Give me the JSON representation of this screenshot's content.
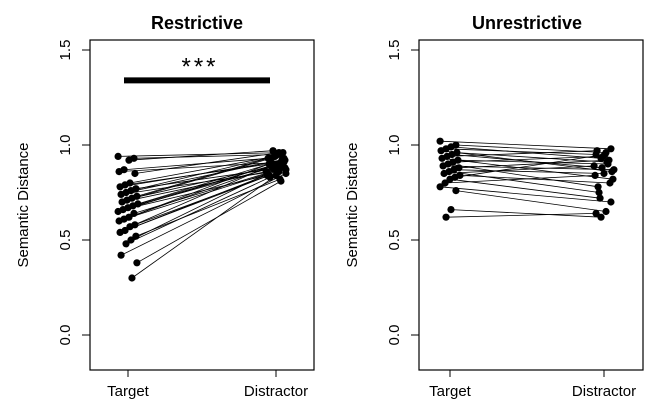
{
  "chart_data": [
    {
      "type": "scatter",
      "title": "Restrictive",
      "xlabel": "",
      "ylabel": "Semantic Distance",
      "categories": [
        "Target",
        "Distractor"
      ],
      "ylim": [
        0.0,
        1.5
      ],
      "yticks": [
        "0.0",
        "0.5",
        "1.0",
        "1.5"
      ],
      "grid": false,
      "annotations": [
        {
          "text": "***",
          "from": "Target",
          "to": "Distractor",
          "y": 1.34
        }
      ],
      "pairs": [
        {
          "target": 0.94,
          "distractor": 0.96
        },
        {
          "target": 0.93,
          "distractor": 0.95
        },
        {
          "target": 0.92,
          "distractor": 0.97
        },
        {
          "target": 0.87,
          "distractor": 0.93
        },
        {
          "target": 0.86,
          "distractor": 0.91
        },
        {
          "target": 0.85,
          "distractor": 0.96
        },
        {
          "target": 0.8,
          "distractor": 0.94
        },
        {
          "target": 0.79,
          "distractor": 0.9
        },
        {
          "target": 0.78,
          "distractor": 0.92
        },
        {
          "target": 0.77,
          "distractor": 0.88
        },
        {
          "target": 0.76,
          "distractor": 0.94
        },
        {
          "target": 0.75,
          "distractor": 0.91
        },
        {
          "target": 0.74,
          "distractor": 0.87
        },
        {
          "target": 0.73,
          "distractor": 0.95
        },
        {
          "target": 0.72,
          "distractor": 0.89
        },
        {
          "target": 0.71,
          "distractor": 0.93
        },
        {
          "target": 0.7,
          "distractor": 0.86
        },
        {
          "target": 0.69,
          "distractor": 0.92
        },
        {
          "target": 0.68,
          "distractor": 0.9
        },
        {
          "target": 0.67,
          "distractor": 0.88
        },
        {
          "target": 0.66,
          "distractor": 0.84
        },
        {
          "target": 0.65,
          "distractor": 0.91
        },
        {
          "target": 0.64,
          "distractor": 0.87
        },
        {
          "target": 0.62,
          "distractor": 0.89
        },
        {
          "target": 0.61,
          "distractor": 0.85
        },
        {
          "target": 0.6,
          "distractor": 0.93
        },
        {
          "target": 0.58,
          "distractor": 0.86
        },
        {
          "target": 0.57,
          "distractor": 0.9
        },
        {
          "target": 0.55,
          "distractor": 0.84
        },
        {
          "target": 0.54,
          "distractor": 0.88
        },
        {
          "target": 0.52,
          "distractor": 0.82
        },
        {
          "target": 0.5,
          "distractor": 0.87
        },
        {
          "target": 0.48,
          "distractor": 0.83
        },
        {
          "target": 0.42,
          "distractor": 0.85
        },
        {
          "target": 0.38,
          "distractor": 0.81
        },
        {
          "target": 0.3,
          "distractor": 0.84
        }
      ]
    },
    {
      "type": "scatter",
      "title": "Unrestrictive",
      "xlabel": "",
      "ylabel": "Semantic Distance",
      "categories": [
        "Target",
        "Distractor"
      ],
      "ylim": [
        0.0,
        1.5
      ],
      "yticks": [
        "0.0",
        "0.5",
        "1.0",
        "1.5"
      ],
      "grid": false,
      "annotations": [],
      "pairs": [
        {
          "target": 1.02,
          "distractor": 0.98
        },
        {
          "target": 1.0,
          "distractor": 0.96
        },
        {
          "target": 0.99,
          "distractor": 0.93
        },
        {
          "target": 0.98,
          "distractor": 0.95
        },
        {
          "target": 0.97,
          "distractor": 0.86
        },
        {
          "target": 0.96,
          "distractor": 0.91
        },
        {
          "target": 0.95,
          "distractor": 0.88
        },
        {
          "target": 0.94,
          "distractor": 0.97
        },
        {
          "target": 0.93,
          "distractor": 0.82
        },
        {
          "target": 0.92,
          "distractor": 0.9
        },
        {
          "target": 0.91,
          "distractor": 0.94
        },
        {
          "target": 0.9,
          "distractor": 0.78
        },
        {
          "target": 0.89,
          "distractor": 0.87
        },
        {
          "target": 0.88,
          "distractor": 0.92
        },
        {
          "target": 0.87,
          "distractor": 0.85
        },
        {
          "target": 0.86,
          "distractor": 0.75
        },
        {
          "target": 0.85,
          "distractor": 0.89
        },
        {
          "target": 0.84,
          "distractor": 0.8
        },
        {
          "target": 0.83,
          "distractor": 0.95
        },
        {
          "target": 0.82,
          "distractor": 0.72
        },
        {
          "target": 0.8,
          "distractor": 0.84
        },
        {
          "target": 0.78,
          "distractor": 0.7
        },
        {
          "target": 0.76,
          "distractor": 0.65
        },
        {
          "target": 0.66,
          "distractor": 0.62
        },
        {
          "target": 0.62,
          "distractor": 0.64
        }
      ]
    }
  ]
}
